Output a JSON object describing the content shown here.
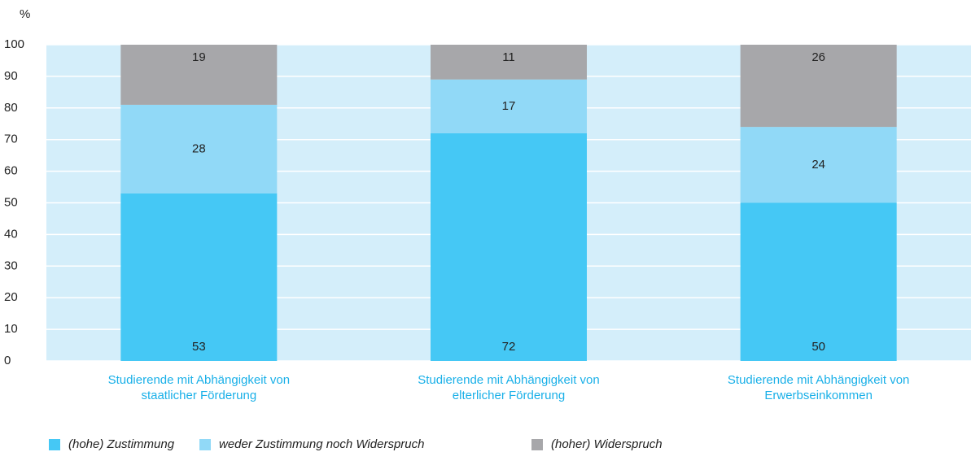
{
  "chart_data": {
    "type": "stacked_bar",
    "y_label": "%",
    "categories": [
      "Studierende mit Abhängigkeit von staatlicher Förderung",
      "Studierende mit Abhängigkeit von elterlicher Förderung",
      "Studierende mit Abhängigkeit von Erwerbseinkommen"
    ],
    "series": [
      {
        "name": "(hohe) Zustimmung",
        "color": "#45c8f5",
        "values": [
          53,
          72,
          50
        ]
      },
      {
        "name": "weder Zustimmung noch Widerspruch",
        "color": "#91d9f7",
        "values": [
          28,
          17,
          24
        ]
      },
      {
        "name": "(hoher) Widerspruch",
        "color": "#a7a7aa",
        "values": [
          19,
          11,
          26
        ]
      }
    ],
    "ylim": [
      0,
      100
    ],
    "yticks": [
      0,
      10,
      20,
      30,
      40,
      50,
      60,
      70,
      80,
      90,
      100
    ],
    "grid": true,
    "plot_background": "#d4eefa",
    "legend": "bottom-left"
  }
}
